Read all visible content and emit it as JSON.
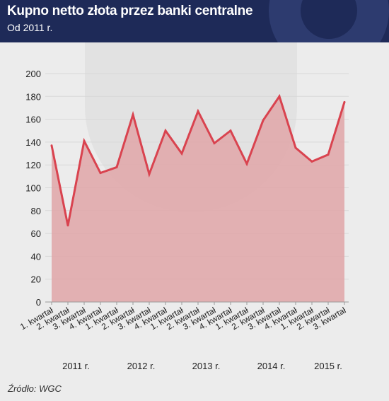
{
  "header": {
    "title": "Kupno netto złota przez banki centralne",
    "subtitle": "Od 2011 r."
  },
  "source": "Źródło: WGC",
  "chart_data": {
    "type": "area",
    "title": "Kupno netto złota przez banki centralne",
    "subtitle": "Od 2011 r.",
    "xlabel": "",
    "ylabel": "",
    "ylim": [
      0,
      200
    ],
    "yticks": [
      0,
      20,
      40,
      60,
      80,
      100,
      120,
      140,
      160,
      180,
      200
    ],
    "grid": true,
    "categories": [
      "1. kwartał",
      "2. kwartał",
      "3. kwartał",
      "4. kwartał",
      "1. kwartał",
      "2. kwartał",
      "3. kwartał",
      "4. kwartał",
      "1. kwartał",
      "2. kwartał",
      "3. kwartał",
      "4. kwartał",
      "1. kwartał",
      "2. kwartał",
      "3. kwartał",
      "4. kwartał",
      "1. kwartał",
      "2. kwartał",
      "3. kwartał"
    ],
    "years": [
      {
        "label": "2011 r.",
        "from": 0,
        "to": 3
      },
      {
        "label": "2012 r.",
        "from": 4,
        "to": 7
      },
      {
        "label": "2013 r.",
        "from": 8,
        "to": 11
      },
      {
        "label": "2014 r.",
        "from": 12,
        "to": 15
      },
      {
        "label": "2015 r.",
        "from": 16,
        "to": 18
      }
    ],
    "series": [
      {
        "values": [
          137,
          67,
          141,
          113,
          118,
          164,
          112,
          150,
          130,
          167,
          139,
          150,
          121,
          159,
          180,
          135,
          123,
          129,
          175
        ]
      }
    ],
    "colors": {
      "line": "#d9434f",
      "fill": "#e1a6a8",
      "grid": "#d8d8d8",
      "axis": "#9a9a9a"
    }
  }
}
